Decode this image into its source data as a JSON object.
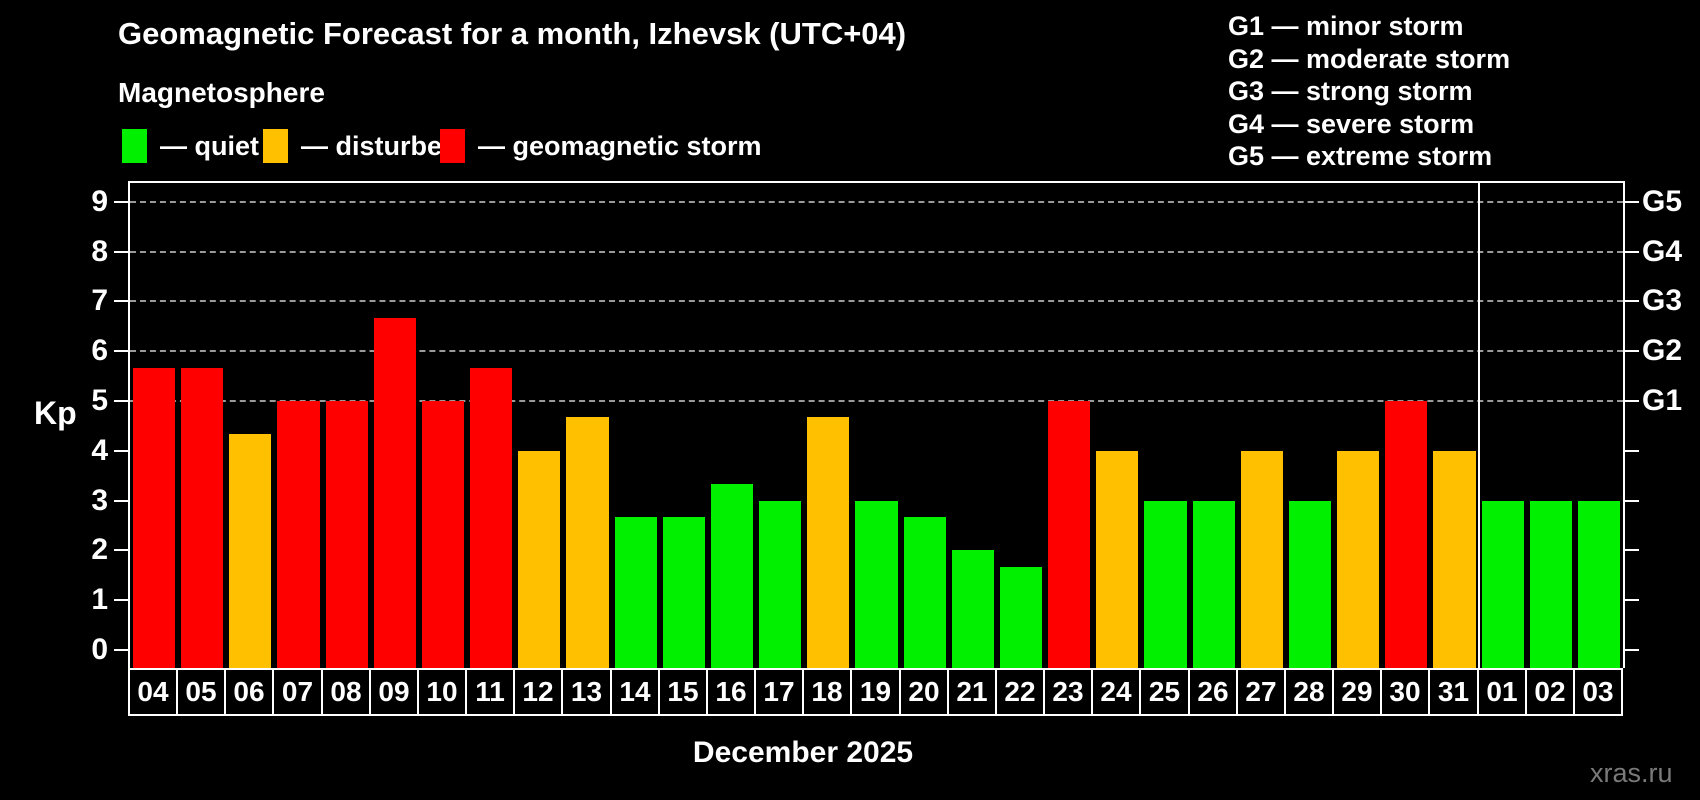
{
  "header": {
    "title": "Geomagnetic Forecast for a month, Izhevsk (UTC+04)",
    "subtitle": "Magnetosphere",
    "legend": [
      {
        "key": "quiet",
        "label": "— quiet"
      },
      {
        "key": "disturbed",
        "label": "— disturbed"
      },
      {
        "key": "storm",
        "label": "— geomagnetic storm"
      }
    ],
    "g_legend": [
      "G1 — minor storm",
      "G2 — moderate storm",
      "G3 — strong storm",
      "G4 — severe storm",
      "G5 — extreme storm"
    ]
  },
  "chart_data": {
    "type": "bar",
    "title": "Geomagnetic Forecast for a month, Izhevsk (UTC+04)",
    "xlabel": "December 2025",
    "ylabel": "Kp",
    "ylim": [
      0,
      9
    ],
    "yticks": [
      0,
      1,
      2,
      3,
      4,
      5,
      6,
      7,
      8,
      9
    ],
    "gridlines_at": [
      5,
      6,
      7,
      8,
      9
    ],
    "grid": "dashed, only at storm levels Kp 5-9",
    "legend_position": "top",
    "right_axis": [
      {
        "kp": 5,
        "label": "G1"
      },
      {
        "kp": 6,
        "label": "G2"
      },
      {
        "kp": 7,
        "label": "G3"
      },
      {
        "kp": 8,
        "label": "G4"
      },
      {
        "kp": 9,
        "label": "G5"
      }
    ],
    "categories": [
      "04",
      "05",
      "06",
      "07",
      "08",
      "09",
      "10",
      "11",
      "12",
      "13",
      "14",
      "15",
      "16",
      "17",
      "18",
      "19",
      "20",
      "21",
      "22",
      "23",
      "24",
      "25",
      "26",
      "27",
      "28",
      "29",
      "30",
      "31",
      "01",
      "02",
      "03"
    ],
    "values": [
      5.67,
      5.67,
      4.33,
      5.0,
      5.0,
      6.67,
      5.0,
      5.67,
      4.0,
      4.67,
      2.67,
      2.67,
      3.33,
      3.0,
      4.67,
      3.0,
      2.67,
      2.0,
      1.67,
      5.0,
      4.0,
      3.0,
      3.0,
      4.0,
      3.0,
      4.0,
      5.0,
      4.0,
      3.0,
      3.0,
      3.0
    ],
    "statuses": [
      "storm",
      "storm",
      "disturbed",
      "storm",
      "storm",
      "storm",
      "storm",
      "storm",
      "disturbed",
      "disturbed",
      "quiet",
      "quiet",
      "quiet",
      "quiet",
      "disturbed",
      "quiet",
      "quiet",
      "quiet",
      "quiet",
      "storm",
      "disturbed",
      "quiet",
      "quiet",
      "disturbed",
      "quiet",
      "disturbed",
      "storm",
      "disturbed",
      "quiet",
      "quiet",
      "quiet"
    ],
    "month_separator_after_index": 27,
    "colors": {
      "quiet": "#00f000",
      "disturbed": "#ffc000",
      "storm": "#ff0000"
    }
  },
  "footer": {
    "month_label": "December 2025",
    "watermark": "xras.ru"
  }
}
